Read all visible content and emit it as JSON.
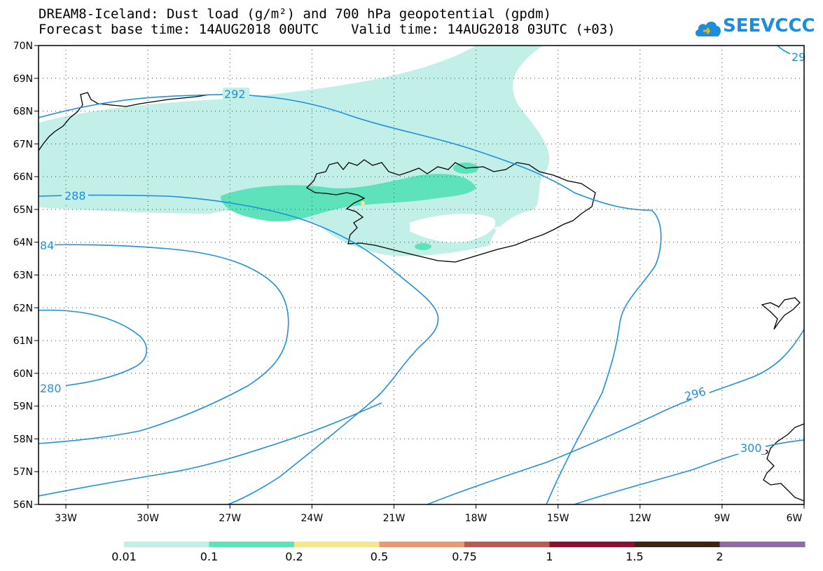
{
  "header": {
    "title_line1": "DREAM8-Iceland: Dust load (g/m²) and 700 hPa geopotential (gpdm)",
    "title_line2": "Forecast base time: 14AUG2018 00UTC    Valid time: 14AUG2018 03UTC (+03)"
  },
  "logo": {
    "text": "SEEVCCC",
    "icon": "cloud-icon",
    "color": "#1b8ddb"
  },
  "map": {
    "lon_ticks": [
      "33W",
      "30W",
      "27W",
      "24W",
      "21W",
      "18W",
      "15W",
      "12W",
      "9W",
      "6W"
    ],
    "lat_ticks": [
      "70N",
      "69N",
      "68N",
      "67N",
      "66N",
      "65N",
      "64N",
      "63N",
      "62N",
      "61N",
      "60N",
      "59N",
      "58N",
      "57N",
      "56N"
    ],
    "lon_range": [
      -34.0,
      -6.0
    ],
    "lat_range": [
      56.0,
      70.0
    ],
    "grid": "dotted",
    "contour_color": "#1f8fe0",
    "contour_labels": [
      "292",
      "288",
      "84",
      "280",
      "296",
      "300",
      "29"
    ]
  },
  "legend": {
    "colors": [
      "#c2f0e8",
      "#5ee2bc",
      "#f4e88a",
      "#e79a72",
      "#b85b55",
      "#8c1030",
      "#3d2415",
      "#8f6aa5"
    ],
    "labels": [
      "0.01",
      "0.1",
      "0.2",
      "0.5",
      "0.75",
      "1",
      "1.5",
      "2"
    ]
  }
}
